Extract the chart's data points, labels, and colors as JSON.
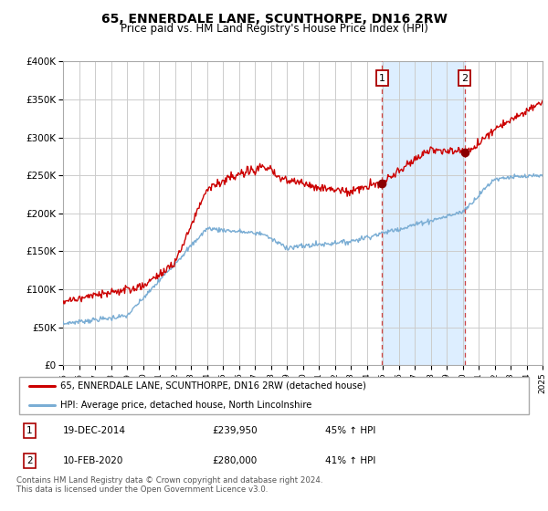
{
  "title": "65, ENNERDALE LANE, SCUNTHORPE, DN16 2RW",
  "subtitle": "Price paid vs. HM Land Registry's House Price Index (HPI)",
  "background_color": "#ffffff",
  "plot_bg_color": "#ffffff",
  "grid_color": "#cccccc",
  "ylim": [
    0,
    400000
  ],
  "yticks": [
    0,
    50000,
    100000,
    150000,
    200000,
    250000,
    300000,
    350000,
    400000
  ],
  "ytick_labels": [
    "£0",
    "£50K",
    "£100K",
    "£150K",
    "£200K",
    "£250K",
    "£300K",
    "£350K",
    "£400K"
  ],
  "sale1_date_num": 2014.97,
  "sale1_price": 239950,
  "sale2_date_num": 2020.12,
  "sale2_price": 280000,
  "red_line_color": "#cc0000",
  "blue_line_color": "#7aadd4",
  "shade_color": "#ddeeff",
  "marker_box_color": "#aa0000",
  "dot_color": "#8b0000",
  "legend_label_red": "65, ENNERDALE LANE, SCUNTHORPE, DN16 2RW (detached house)",
  "legend_label_blue": "HPI: Average price, detached house, North Lincolnshire",
  "table_row1": [
    "1",
    "19-DEC-2014",
    "£239,950",
    "45% ↑ HPI"
  ],
  "table_row2": [
    "2",
    "10-FEB-2020",
    "£280,000",
    "41% ↑ HPI"
  ],
  "footnote": "Contains HM Land Registry data © Crown copyright and database right 2024.\nThis data is licensed under the Open Government Licence v3.0.",
  "xstart": 1995,
  "xend": 2025
}
